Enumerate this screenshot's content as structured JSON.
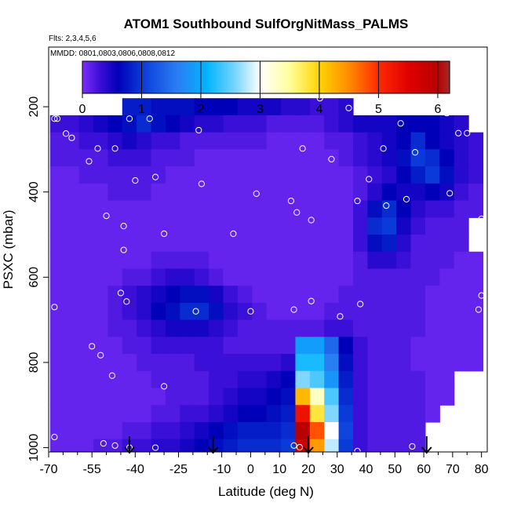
{
  "chart_data": {
    "type": "heatmap",
    "title": "ATOM1 Southbound SulfOrgNitMass_PALMS",
    "flights_note": "Flts: 2,3,4,5,6",
    "dates_note": "MMDD: 0801,0803,0806,0808,0812",
    "xlabel": "Latitude (deg N)",
    "ylabel": "PSXC (mbar)",
    "xlim": [
      -70,
      82
    ],
    "ylim": [
      1010,
      60
    ],
    "x_ticks": [
      -70,
      -55,
      -40,
      -25,
      -10,
      0,
      10,
      20,
      30,
      40,
      50,
      60,
      70,
      80
    ],
    "x_tick_labels": [
      "-70",
      "-55",
      "-40",
      "-25",
      "-10",
      "0",
      "10",
      "20",
      "30",
      "40",
      "50",
      "60",
      "70",
      "80"
    ],
    "x_minor_ticks": [
      -65,
      -60,
      -50,
      -45,
      -35,
      -30,
      -20,
      -15,
      -5,
      5,
      15,
      25,
      35,
      45,
      55,
      65,
      75
    ],
    "y_ticks": [
      200,
      400,
      600,
      800,
      1000
    ],
    "y_tick_labels": [
      "200",
      "400",
      "600",
      "800",
      "1000"
    ],
    "colorbar": {
      "ticks": [
        0,
        1,
        2,
        3,
        4,
        5,
        6
      ],
      "tick_labels": [
        "0",
        "1",
        "2",
        "3",
        "4",
        "5",
        "6"
      ],
      "range": [
        0,
        6.2
      ],
      "stops": [
        {
          "v": 0.0,
          "color": "#7b2ff7"
        },
        {
          "v": 0.3,
          "color": "#3a0fd8"
        },
        {
          "v": 0.6,
          "color": "#0000b8"
        },
        {
          "v": 1.0,
          "color": "#0a3ad8"
        },
        {
          "v": 1.6,
          "color": "#2a7ef4"
        },
        {
          "v": 2.1,
          "color": "#00b4ff"
        },
        {
          "v": 2.6,
          "color": "#7fd6ff"
        },
        {
          "v": 3.0,
          "color": "#ffffff"
        },
        {
          "v": 3.5,
          "color": "#ffff9a"
        },
        {
          "v": 4.0,
          "color": "#ffd400"
        },
        {
          "v": 4.5,
          "color": "#ff8c00"
        },
        {
          "v": 5.0,
          "color": "#ff2a00"
        },
        {
          "v": 5.5,
          "color": "#e00000"
        },
        {
          "v": 6.0,
          "color": "#b80000"
        },
        {
          "v": 6.2,
          "color": "#a52a2a"
        }
      ]
    },
    "field": {
      "x_columns": [
        -67,
        -62,
        -57,
        -52,
        -47,
        -42,
        -37,
        -32,
        -27,
        -22,
        -17,
        -12,
        -7,
        -2,
        3,
        8,
        13,
        18,
        23,
        28,
        33,
        38,
        43,
        48,
        53,
        58,
        63,
        68,
        73,
        78
      ],
      "p_rows": [
        200,
        240,
        280,
        320,
        360,
        400,
        440,
        480,
        520,
        560,
        600,
        640,
        680,
        720,
        760,
        800,
        840,
        880,
        920,
        960,
        1000
      ],
      "values": [
        [
          null,
          null,
          null,
          null,
          null,
          0.8,
          0.8,
          0.7,
          0.7,
          0.7,
          0.6,
          0.6,
          0.6,
          0.5,
          0.5,
          0.5,
          0.4,
          0.4,
          0.3,
          0.3,
          0.4,
          null,
          null,
          null,
          null,
          null,
          null,
          null,
          null,
          null
        ],
        [
          0.3,
          0.3,
          0.4,
          0.5,
          0.6,
          0.7,
          0.9,
          0.7,
          0.6,
          0.5,
          0.4,
          0.4,
          0.3,
          0.3,
          0.3,
          0.2,
          0.2,
          0.2,
          0.2,
          0.3,
          0.4,
          0.5,
          0.5,
          0.5,
          0.6,
          0.6,
          0.6,
          0.5,
          0.4,
          null
        ],
        [
          0.2,
          0.2,
          0.3,
          0.3,
          0.4,
          0.5,
          0.4,
          0.3,
          0.3,
          0.2,
          0.2,
          0.2,
          0.2,
          0.2,
          0.2,
          0.1,
          0.1,
          0.1,
          0.1,
          0.2,
          0.2,
          0.3,
          0.4,
          0.5,
          0.6,
          0.9,
          0.6,
          0.5,
          0.4,
          0.3
        ],
        [
          0.2,
          0.2,
          0.2,
          0.2,
          0.3,
          0.3,
          0.3,
          0.2,
          0.2,
          0.2,
          0.1,
          0.1,
          0.1,
          0.1,
          0.1,
          0.1,
          0.1,
          0.1,
          0.1,
          0.1,
          0.2,
          0.3,
          0.4,
          0.5,
          0.7,
          1.0,
          0.9,
          0.6,
          0.4,
          0.3
        ],
        [
          0.1,
          0.1,
          0.2,
          0.2,
          0.2,
          0.2,
          0.2,
          0.2,
          0.1,
          0.1,
          0.1,
          0.1,
          0.1,
          0.1,
          0.1,
          0.1,
          0.1,
          0.1,
          0.1,
          0.1,
          0.1,
          0.2,
          0.3,
          0.4,
          0.6,
          0.8,
          1.0,
          0.7,
          0.4,
          0.3
        ],
        [
          0.1,
          0.1,
          0.1,
          0.1,
          0.2,
          0.2,
          0.2,
          0.1,
          0.1,
          0.1,
          0.1,
          0.1,
          0.1,
          0.1,
          0.1,
          0.1,
          0.1,
          0.1,
          0.1,
          0.1,
          0.1,
          0.2,
          0.4,
          0.6,
          0.5,
          0.5,
          0.6,
          0.5,
          0.3,
          0.2
        ],
        [
          0.1,
          0.1,
          0.1,
          0.1,
          0.1,
          0.1,
          0.1,
          0.1,
          0.1,
          0.1,
          0.1,
          0.1,
          0.1,
          0.1,
          0.1,
          0.1,
          0.1,
          0.1,
          0.1,
          0.1,
          0.1,
          0.3,
          0.7,
          0.9,
          0.6,
          0.4,
          0.3,
          0.3,
          0.2,
          0.2
        ],
        [
          0.1,
          0.1,
          0.1,
          0.1,
          0.1,
          0.1,
          0.1,
          0.1,
          0.1,
          0.1,
          0.1,
          0.1,
          0.1,
          0.1,
          0.1,
          0.1,
          0.1,
          0.1,
          0.1,
          0.1,
          0.1,
          0.3,
          0.9,
          1.0,
          0.5,
          0.3,
          0.2,
          0.2,
          0.2,
          null
        ],
        [
          0.1,
          0.1,
          0.1,
          0.1,
          0.1,
          0.1,
          0.1,
          0.1,
          0.1,
          0.1,
          0.1,
          0.1,
          0.1,
          0.1,
          0.1,
          0.1,
          0.1,
          0.1,
          0.1,
          0.1,
          0.1,
          0.3,
          0.7,
          0.8,
          0.4,
          0.2,
          0.2,
          0.2,
          0.2,
          null
        ],
        [
          0.1,
          0.1,
          0.1,
          0.1,
          0.1,
          0.1,
          0.1,
          0.2,
          0.2,
          0.2,
          0.2,
          0.1,
          0.1,
          0.1,
          0.1,
          0.1,
          0.1,
          0.1,
          0.1,
          0.1,
          0.1,
          0.2,
          0.4,
          0.4,
          0.3,
          0.2,
          0.2,
          0.2,
          0.1,
          0.1
        ],
        [
          0.1,
          0.1,
          0.1,
          0.1,
          0.1,
          0.2,
          0.2,
          0.3,
          0.4,
          0.4,
          0.3,
          0.2,
          0.1,
          0.1,
          0.1,
          0.1,
          0.1,
          0.1,
          0.1,
          0.1,
          0.1,
          0.2,
          0.2,
          0.2,
          0.2,
          0.2,
          0.2,
          0.1,
          0.1,
          0.1
        ],
        [
          0.1,
          0.1,
          0.1,
          0.1,
          0.2,
          0.3,
          0.4,
          0.5,
          0.6,
          0.7,
          0.7,
          0.5,
          0.3,
          0.2,
          0.1,
          0.1,
          0.1,
          0.1,
          0.1,
          0.1,
          0.2,
          0.2,
          0.2,
          0.2,
          0.2,
          0.2,
          0.1,
          0.1,
          0.1,
          0.1
        ],
        [
          0.1,
          0.1,
          0.1,
          0.1,
          0.2,
          0.3,
          0.4,
          0.6,
          0.7,
          0.9,
          0.9,
          0.7,
          0.4,
          0.3,
          0.2,
          0.1,
          0.1,
          0.1,
          0.1,
          0.2,
          0.2,
          0.2,
          0.2,
          0.2,
          0.2,
          0.2,
          0.1,
          0.1,
          0.1,
          0.1
        ],
        [
          0.1,
          0.1,
          0.1,
          0.1,
          0.2,
          0.2,
          0.3,
          0.4,
          0.5,
          0.5,
          0.5,
          0.4,
          0.3,
          0.2,
          0.2,
          0.2,
          0.2,
          0.2,
          0.2,
          0.3,
          0.3,
          0.2,
          0.2,
          0.2,
          0.2,
          0.2,
          0.1,
          0.1,
          0.1,
          0.1
        ],
        [
          0.1,
          0.1,
          0.1,
          0.1,
          0.1,
          0.2,
          0.2,
          0.3,
          0.3,
          0.3,
          0.3,
          0.3,
          0.2,
          0.2,
          0.2,
          0.2,
          0.2,
          1.9,
          1.9,
          1.4,
          0.6,
          0.3,
          0.2,
          0.2,
          0.2,
          0.1,
          0.1,
          0.1,
          0.1,
          0.1
        ],
        [
          0.1,
          0.1,
          0.1,
          0.1,
          0.1,
          0.1,
          0.2,
          0.2,
          0.2,
          0.2,
          0.3,
          0.3,
          0.3,
          0.3,
          0.3,
          0.3,
          0.4,
          2.2,
          2.2,
          1.6,
          0.7,
          0.3,
          0.2,
          0.2,
          0.2,
          0.1,
          0.1,
          0.1,
          0.1,
          0.1
        ],
        [
          0.1,
          0.1,
          0.1,
          0.1,
          0.1,
          0.1,
          0.1,
          0.2,
          0.2,
          0.2,
          0.2,
          0.3,
          0.3,
          0.4,
          0.4,
          0.5,
          0.6,
          2.6,
          2.4,
          1.8,
          0.8,
          0.3,
          0.2,
          0.2,
          0.2,
          0.2,
          0.1,
          0.1,
          null,
          null
        ],
        [
          0.1,
          0.1,
          0.1,
          0.1,
          0.1,
          0.1,
          0.1,
          0.1,
          0.2,
          0.2,
          0.2,
          0.3,
          0.4,
          0.5,
          0.5,
          0.6,
          0.7,
          4.2,
          3.3,
          2.4,
          0.9,
          0.3,
          0.2,
          0.2,
          0.2,
          0.2,
          0.1,
          0.1,
          null,
          null
        ],
        [
          0.1,
          0.1,
          0.1,
          0.1,
          0.1,
          0.1,
          0.1,
          0.2,
          0.2,
          0.3,
          0.3,
          0.4,
          0.5,
          0.6,
          0.6,
          0.7,
          0.8,
          5.3,
          3.8,
          2.6,
          1.0,
          0.3,
          0.2,
          0.2,
          0.2,
          0.2,
          0.1,
          null,
          null,
          null
        ],
        [
          0.1,
          0.1,
          0.1,
          0.1,
          0.1,
          0.2,
          0.2,
          0.3,
          0.3,
          0.4,
          0.5,
          0.6,
          0.7,
          0.8,
          0.8,
          0.8,
          0.9,
          6.0,
          4.8,
          3.0,
          1.1,
          0.3,
          0.2,
          0.2,
          0.2,
          0.2,
          null,
          null,
          null,
          null
        ],
        [
          0.1,
          0.1,
          0.1,
          0.2,
          0.2,
          0.3,
          0.3,
          0.4,
          0.4,
          0.5,
          0.6,
          0.7,
          0.8,
          0.9,
          0.9,
          0.9,
          1.0,
          5.8,
          4.4,
          2.8,
          1.0,
          0.3,
          0.2,
          0.2,
          0.2,
          0.2,
          null,
          null,
          null,
          null
        ]
      ]
    },
    "sample_points": [
      {
        "x": -68,
        "y": 228
      },
      {
        "x": -67,
        "y": 228
      },
      {
        "x": -64,
        "y": 263
      },
      {
        "x": -62,
        "y": 273
      },
      {
        "x": -56,
        "y": 328
      },
      {
        "x": -53,
        "y": 298
      },
      {
        "x": -47,
        "y": 298
      },
      {
        "x": -46,
        "y": 196
      },
      {
        "x": -44,
        "y": 480
      },
      {
        "x": -44,
        "y": 536
      },
      {
        "x": -50,
        "y": 456
      },
      {
        "x": -42,
        "y": 228
      },
      {
        "x": -40,
        "y": 373
      },
      {
        "x": -35,
        "y": 228
      },
      {
        "x": -33,
        "y": 365
      },
      {
        "x": -30,
        "y": 498
      },
      {
        "x": -17,
        "y": 381
      },
      {
        "x": -18,
        "y": 255
      },
      {
        "x": -6,
        "y": 498
      },
      {
        "x": 2,
        "y": 404
      },
      {
        "x": 14,
        "y": 421
      },
      {
        "x": 16,
        "y": 448
      },
      {
        "x": 18,
        "y": 298
      },
      {
        "x": 21,
        "y": 466
      },
      {
        "x": 24,
        "y": 180
      },
      {
        "x": 28,
        "y": 323
      },
      {
        "x": 34,
        "y": 203
      },
      {
        "x": 37,
        "y": 421
      },
      {
        "x": 41,
        "y": 370
      },
      {
        "x": 46,
        "y": 298
      },
      {
        "x": 47,
        "y": 432
      },
      {
        "x": 52,
        "y": 239
      },
      {
        "x": 54,
        "y": 417
      },
      {
        "x": 57,
        "y": 307
      },
      {
        "x": 68,
        "y": 215
      },
      {
        "x": 69,
        "y": 403
      },
      {
        "x": 72,
        "y": 262
      },
      {
        "x": 75,
        "y": 262
      },
      {
        "x": 80,
        "y": 463
      },
      {
        "x": -68,
        "y": 670
      },
      {
        "x": -55,
        "y": 762
      },
      {
        "x": -52,
        "y": 783
      },
      {
        "x": -48,
        "y": 831
      },
      {
        "x": -45,
        "y": 637
      },
      {
        "x": -43,
        "y": 657
      },
      {
        "x": -30,
        "y": 856
      },
      {
        "x": -19,
        "y": 680
      },
      {
        "x": 0,
        "y": 680
      },
      {
        "x": 15,
        "y": 676
      },
      {
        "x": 21,
        "y": 656
      },
      {
        "x": 31,
        "y": 692
      },
      {
        "x": 38,
        "y": 663
      },
      {
        "x": 80,
        "y": 643
      },
      {
        "x": 79,
        "y": 676
      },
      {
        "x": 79,
        "y": 851
      },
      {
        "x": -68,
        "y": 975
      },
      {
        "x": -51,
        "y": 990
      },
      {
        "x": -47,
        "y": 995
      },
      {
        "x": -42,
        "y": 1000
      },
      {
        "x": -33,
        "y": 1000
      },
      {
        "x": 15,
        "y": 995
      },
      {
        "x": 17,
        "y": 999
      },
      {
        "x": 37,
        "y": 1008
      },
      {
        "x": 56,
        "y": 997
      }
    ],
    "marker_arrows_x": [
      -42,
      -13,
      20,
      61
    ]
  }
}
